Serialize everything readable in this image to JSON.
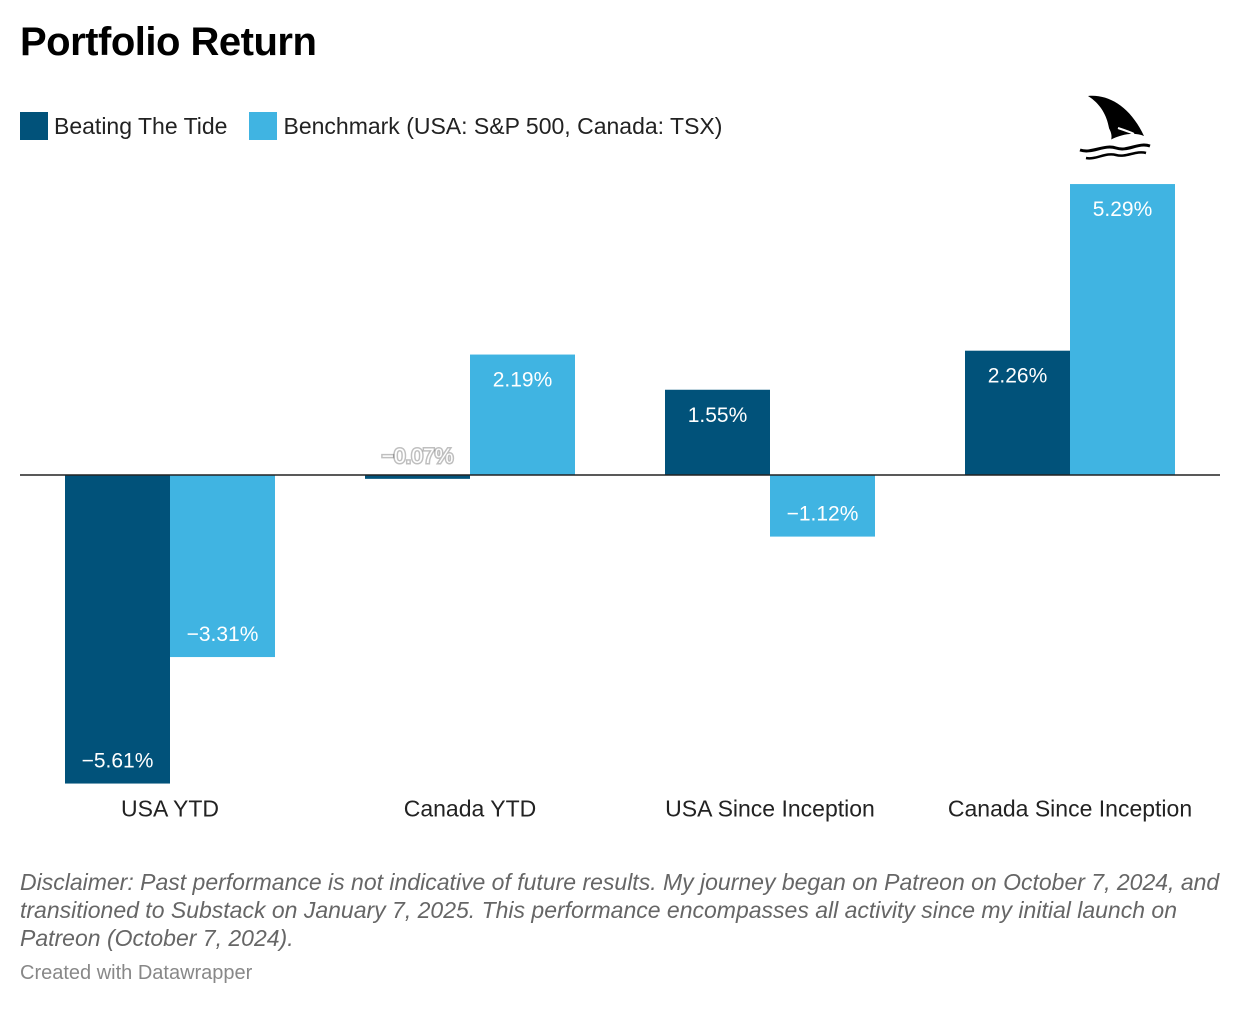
{
  "chart_data": {
    "type": "bar",
    "title": "Portfolio Return",
    "categories": [
      "USA YTD",
      "Canada YTD",
      "USA Since Inception",
      "Canada Since Inception"
    ],
    "series": [
      {
        "name": "Beating The Tide",
        "color": "#01527a",
        "values": [
          -5.61,
          -0.07,
          1.55,
          2.26
        ],
        "labels": [
          "−5.61%",
          "−0.07%",
          "1.55%",
          "2.26%"
        ]
      },
      {
        "name": "Benchmark (USA: S&P 500, Canada: TSX)",
        "color": "#40b4e2",
        "values": [
          -3.31,
          2.19,
          -1.12,
          5.29
        ],
        "labels": [
          "−3.31%",
          "2.19%",
          "−1.12%",
          "5.29%"
        ]
      }
    ],
    "ylim": [
      -5.61,
      5.29
    ],
    "legend_position": "top-left",
    "xlabel": "",
    "ylabel": ""
  },
  "disclaimer": "Disclaimer: Past performance is not indicative of future results. My journey began on Patreon on October 7, 2024, and transitioned to Substack on January 7, 2025. This performance encompasses all activity since my initial launch on Patreon (October 7, 2024).",
  "credit": "Created with Datawrapper",
  "icon": "shark-fin-icon"
}
